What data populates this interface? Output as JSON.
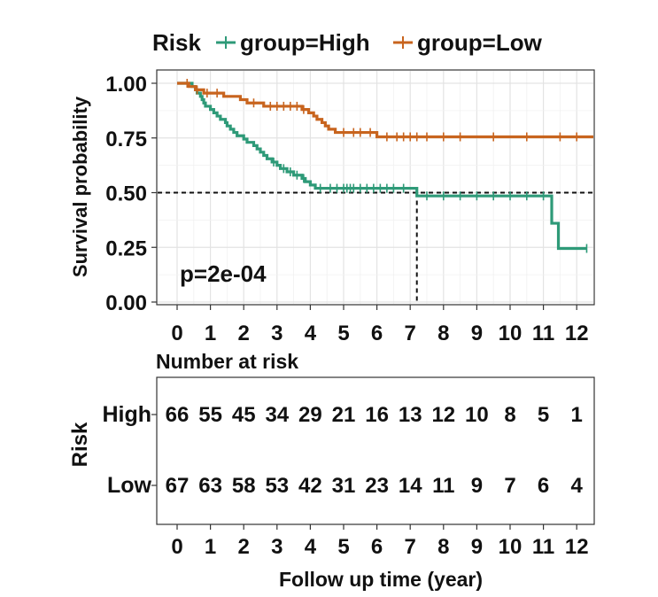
{
  "chart_data": {
    "type": "line",
    "subtype": "kaplan-meier",
    "legend": {
      "title": "Risk",
      "placement": "top",
      "entries": [
        "group=High",
        "group=Low"
      ]
    },
    "xlabel": "",
    "ylabel": "Survival probability",
    "xlim": [
      0,
      12.5
    ],
    "ylim": [
      0,
      1
    ],
    "x_ticks": [
      "0",
      "1",
      "2",
      "3",
      "4",
      "5",
      "6",
      "7",
      "8",
      "9",
      "10",
      "11",
      "12"
    ],
    "y_ticks": [
      "0.00",
      "0.25",
      "0.50",
      "0.75",
      "1.00"
    ],
    "grid": true,
    "annotation": "p=2e-04",
    "median_line": {
      "y": 0.5,
      "x": 7.2
    },
    "series": [
      {
        "name": "group=High",
        "color": "#2e9a78",
        "steps": [
          [
            0,
            1.0
          ],
          [
            0.45,
            0.985
          ],
          [
            0.55,
            0.97
          ],
          [
            0.6,
            0.955
          ],
          [
            0.7,
            0.94
          ],
          [
            0.75,
            0.925
          ],
          [
            0.8,
            0.91
          ],
          [
            0.85,
            0.895
          ],
          [
            1.0,
            0.88
          ],
          [
            1.1,
            0.865
          ],
          [
            1.2,
            0.85
          ],
          [
            1.3,
            0.835
          ],
          [
            1.45,
            0.82
          ],
          [
            1.5,
            0.805
          ],
          [
            1.6,
            0.79
          ],
          [
            1.7,
            0.775
          ],
          [
            1.8,
            0.76
          ],
          [
            2.0,
            0.745
          ],
          [
            2.1,
            0.73
          ],
          [
            2.3,
            0.715
          ],
          [
            2.4,
            0.7
          ],
          [
            2.5,
            0.685
          ],
          [
            2.6,
            0.67
          ],
          [
            2.7,
            0.655
          ],
          [
            2.85,
            0.64
          ],
          [
            3.0,
            0.625
          ],
          [
            3.1,
            0.61
          ],
          [
            3.3,
            0.595
          ],
          [
            3.5,
            0.58
          ],
          [
            3.75,
            0.565
          ],
          [
            3.85,
            0.55
          ],
          [
            4.0,
            0.535
          ],
          [
            4.15,
            0.52
          ],
          [
            7.2,
            0.485
          ],
          [
            11.25,
            0.36
          ],
          [
            11.45,
            0.245
          ],
          [
            12.3,
            0.245
          ]
        ],
        "censor_x": [
          2.9,
          3.2,
          3.4,
          3.6,
          3.8,
          4.3,
          4.6,
          4.8,
          5.0,
          5.1,
          5.2,
          5.3,
          5.5,
          5.7,
          5.9,
          6.1,
          6.3,
          6.5,
          6.8,
          7.5,
          8.0,
          8.5,
          9.0,
          9.5,
          10.0,
          10.5,
          11.0,
          12.3
        ]
      },
      {
        "name": "group=Low",
        "color": "#c8641e",
        "steps": [
          [
            0,
            1.0
          ],
          [
            0.35,
            0.985
          ],
          [
            0.55,
            0.97
          ],
          [
            0.8,
            0.955
          ],
          [
            1.4,
            0.94
          ],
          [
            1.9,
            0.925
          ],
          [
            2.1,
            0.91
          ],
          [
            2.6,
            0.895
          ],
          [
            3.75,
            0.88
          ],
          [
            3.95,
            0.865
          ],
          [
            4.1,
            0.85
          ],
          [
            4.2,
            0.835
          ],
          [
            4.35,
            0.82
          ],
          [
            4.45,
            0.805
          ],
          [
            4.55,
            0.79
          ],
          [
            4.75,
            0.775
          ],
          [
            6.0,
            0.755
          ],
          [
            12.5,
            0.755
          ]
        ],
        "censor_x": [
          0.3,
          0.6,
          0.9,
          1.2,
          2.3,
          2.8,
          3.0,
          3.2,
          3.4,
          3.6,
          3.8,
          5.0,
          5.3,
          5.5,
          5.8,
          6.3,
          6.6,
          6.8,
          7.0,
          7.2,
          7.5,
          8.0,
          8.5,
          9.5,
          10.5,
          11.5,
          12.0
        ]
      }
    ],
    "risk_table": {
      "title": "Number at risk",
      "ylabel": "Risk",
      "xlabel": "Follow up time (year)",
      "rows": [
        {
          "label": "High",
          "color": "#2e9a78",
          "counts": [
            "66",
            "55",
            "45",
            "34",
            "29",
            "21",
            "16",
            "13",
            "12",
            "10",
            "8",
            "5",
            "1"
          ]
        },
        {
          "label": "Low",
          "color": "#c8641e",
          "counts": [
            "67",
            "63",
            "58",
            "53",
            "42",
            "31",
            "23",
            "14",
            "11",
            "9",
            "7",
            "6",
            "4"
          ]
        }
      ]
    }
  }
}
